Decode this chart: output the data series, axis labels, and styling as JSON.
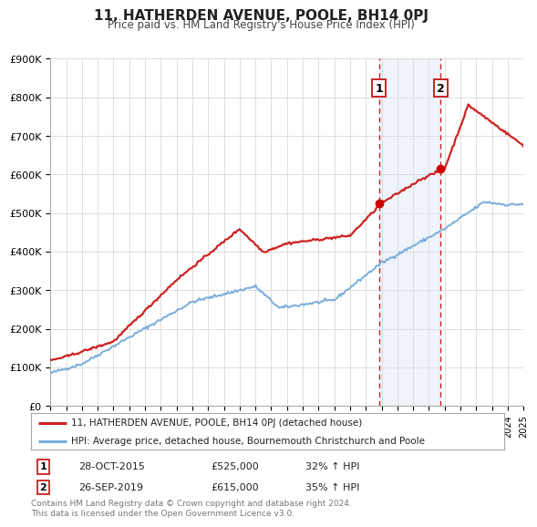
{
  "title": "11, HATHERDEN AVENUE, POOLE, BH14 0PJ",
  "subtitle": "Price paid vs. HM Land Registry's House Price Index (HPI)",
  "legend_line1": "11, HATHERDEN AVENUE, POOLE, BH14 0PJ (detached house)",
  "legend_line2": "HPI: Average price, detached house, Bournemouth Christchurch and Poole",
  "sale1_label": "1",
  "sale1_date": "28-OCT-2015",
  "sale1_price": "£525,000",
  "sale1_hpi": "32% ↑ HPI",
  "sale1_year": 2015.83,
  "sale1_value": 525000,
  "sale2_label": "2",
  "sale2_date": "26-SEP-2019",
  "sale2_price": "£615,000",
  "sale2_hpi": "35% ↑ HPI",
  "sale2_year": 2019.75,
  "sale2_value": 615000,
  "hpi_line_color": "#7aaddc",
  "price_line_color": "#cc2222",
  "dot_color": "#cc0000",
  "vline_color": "#cc2222",
  "shade_color": "#cfe0f0",
  "background_color": "#ffffff",
  "grid_color": "#dddddd",
  "ylim": [
    0,
    900000
  ],
  "xlim_start": 1995,
  "xlim_end": 2025,
  "footer_text": "Contains HM Land Registry data © Crown copyright and database right 2024.\nThis data is licensed under the Open Government Licence v3.0."
}
